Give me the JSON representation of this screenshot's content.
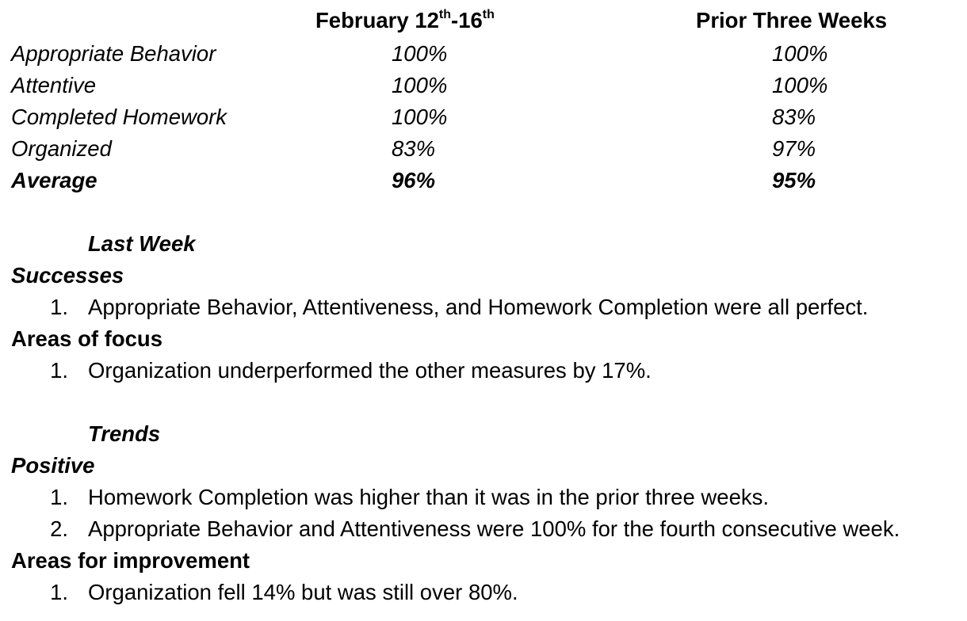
{
  "table": {
    "header": {
      "col1": {
        "prefix": "February 12",
        "sup1": "th",
        "mid": "-16",
        "sup2": "th"
      },
      "col2": "Prior Three Weeks"
    },
    "rows": [
      {
        "label": "Appropriate Behavior",
        "current": "100%",
        "prior": "100%"
      },
      {
        "label": "Attentive",
        "current": "100%",
        "prior": "100%"
      },
      {
        "label": "Completed Homework",
        "current": "100%",
        "prior": "83%"
      },
      {
        "label": "Organized",
        "current": "83%",
        "prior": "97%"
      }
    ],
    "average": {
      "label": "Average",
      "current": "96%",
      "prior": "95%"
    }
  },
  "last_week": {
    "title": "Last Week",
    "successes": {
      "heading": "Successes",
      "items": [
        {
          "num": "1.",
          "text": "Appropriate Behavior, Attentiveness, and Homework Completion were all perfect."
        }
      ]
    },
    "focus": {
      "heading": "Areas of focus",
      "items": [
        {
          "num": "1.",
          "text": "Organization underperformed the other measures by 17%."
        }
      ]
    }
  },
  "trends": {
    "title": "Trends",
    "positive": {
      "heading": "Positive",
      "items": [
        {
          "num": "1.",
          "text": "Homework Completion was higher than it was in the prior three weeks."
        },
        {
          "num": "2.",
          "text": "Appropriate Behavior and Attentiveness were 100% for the fourth consecutive week."
        }
      ]
    },
    "improvement": {
      "heading": "Areas for improvement",
      "items": [
        {
          "num": "1.",
          "text": "Organization fell 14% but was still over 80%."
        }
      ]
    }
  }
}
